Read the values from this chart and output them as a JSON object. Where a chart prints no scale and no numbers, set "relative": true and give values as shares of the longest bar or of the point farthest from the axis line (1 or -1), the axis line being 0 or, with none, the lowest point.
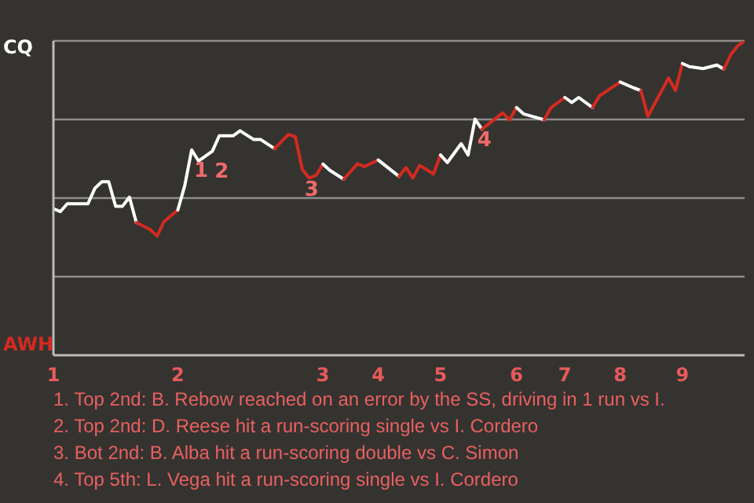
{
  "chart_data": {
    "type": "line",
    "relative": true,
    "categories": [
      "1",
      null,
      null,
      null,
      null,
      null,
      null,
      null,
      null,
      null,
      null,
      null,
      null,
      null,
      null,
      null,
      null,
      null,
      "2",
      null,
      null,
      null,
      null,
      null,
      null,
      null,
      null,
      null,
      null,
      null,
      null,
      null,
      null,
      null,
      null,
      null,
      null,
      null,
      null,
      "3",
      null,
      null,
      null,
      null,
      null,
      null,
      null,
      "4",
      null,
      null,
      null,
      null,
      null,
      null,
      null,
      null,
      "5",
      null,
      null,
      null,
      null,
      null,
      null,
      null,
      null,
      null,
      null,
      "6",
      null,
      null,
      null,
      null,
      null,
      null,
      "7",
      null,
      null,
      null,
      null,
      null,
      null,
      null,
      "8",
      null,
      null,
      null,
      null,
      null,
      null,
      null,
      null,
      "9",
      null,
      null,
      null,
      null,
      null,
      null,
      null,
      null,
      null
    ],
    "series": [
      {
        "color": "#ffffff",
        "values": [
          0.466,
          0.457,
          0.482,
          null,
          null,
          0.482,
          0.531,
          0.552,
          0.552,
          0.474,
          0.474,
          0.503,
          0.422,
          null,
          null,
          null,
          null,
          null,
          null,
          null,
          null,
          null,
          null,
          null,
          null,
          null,
          null,
          null,
          null,
          null,
          null,
          null,
          null,
          null,
          null,
          null,
          null,
          null,
          null,
          null,
          null,
          null,
          null,
          null,
          null,
          null,
          null,
          null,
          null,
          null,
          null,
          null,
          null,
          null,
          null,
          null,
          null,
          null,
          null,
          null,
          null,
          null,
          null,
          null,
          null,
          null,
          null,
          null,
          null,
          null,
          null,
          null,
          null,
          null,
          null,
          null,
          null,
          null,
          null,
          null,
          null,
          null,
          null,
          null,
          null,
          null,
          null,
          null,
          null,
          null,
          null,
          null,
          null,
          null,
          null,
          null,
          null,
          null,
          null,
          null,
          null
        ]
      },
      {
        "color": "#d42a20",
        "values": [
          null,
          null,
          null,
          null,
          null,
          null,
          null,
          null,
          null,
          null,
          null,
          null,
          0.422,
          null,
          0.4,
          0.379,
          0.425,
          null,
          0.462,
          null,
          null,
          null,
          null,
          null,
          null,
          null,
          null,
          null,
          null,
          null,
          null,
          null,
          null,
          null,
          null,
          null,
          null,
          null,
          null,
          null,
          null,
          null,
          null,
          null,
          null,
          null,
          null,
          null,
          null,
          null,
          null,
          null,
          null,
          null,
          null,
          null,
          null,
          null,
          null,
          null,
          null,
          null,
          null,
          null,
          null,
          null,
          null,
          null,
          null,
          null,
          null,
          null,
          null,
          null,
          null,
          null,
          null,
          null,
          null,
          null,
          null,
          null,
          null,
          null,
          null,
          null,
          null,
          null,
          null,
          null,
          null,
          null,
          null,
          null,
          null,
          null,
          null,
          null,
          null,
          null,
          null
        ]
      },
      {
        "color": "#ffffff",
        "values": [
          null,
          null,
          null,
          null,
          null,
          null,
          null,
          null,
          null,
          null,
          null,
          null,
          null,
          null,
          null,
          null,
          null,
          null,
          0.462,
          0.539,
          0.653,
          0.618,
          null,
          0.649,
          0.698,
          null,
          0.698,
          0.714,
          null,
          0.686,
          0.686,
          null,
          0.657,
          null,
          null,
          null,
          null,
          null,
          null,
          null,
          null,
          null,
          null,
          null,
          null,
          null,
          null,
          null,
          null,
          null,
          null,
          null,
          null,
          null,
          null,
          null,
          null,
          null,
          null,
          null,
          null,
          null,
          null,
          null,
          null,
          null,
          null,
          null,
          null,
          null,
          null,
          null,
          null,
          null,
          null,
          null,
          null,
          null,
          null,
          null,
          null,
          null,
          null,
          null,
          null,
          null,
          null,
          null,
          null,
          null,
          null,
          null,
          null,
          null,
          null,
          null,
          null,
          null,
          null,
          null,
          null
        ]
      },
      {
        "color": "#d42a20",
        "values": [
          null,
          null,
          null,
          null,
          null,
          null,
          null,
          null,
          null,
          null,
          null,
          null,
          null,
          null,
          null,
          null,
          null,
          null,
          null,
          null,
          null,
          null,
          null,
          null,
          null,
          null,
          null,
          null,
          null,
          null,
          null,
          null,
          0.657,
          null,
          0.702,
          0.695,
          0.592,
          0.564,
          0.572,
          0.608,
          null,
          null,
          null,
          null,
          null,
          null,
          null,
          null,
          null,
          null,
          null,
          null,
          null,
          null,
          null,
          null,
          null,
          null,
          null,
          null,
          null,
          null,
          null,
          null,
          null,
          null,
          null,
          null,
          null,
          null,
          null,
          null,
          null,
          null,
          null,
          null,
          null,
          null,
          null,
          null,
          null,
          null,
          null,
          null,
          null,
          null,
          null,
          null,
          null,
          null,
          null,
          null,
          null,
          null,
          null,
          null,
          null,
          null,
          null,
          null,
          null
        ]
      },
      {
        "color": "#ffffff",
        "values": [
          null,
          null,
          null,
          null,
          null,
          null,
          null,
          null,
          null,
          null,
          null,
          null,
          null,
          null,
          null,
          null,
          null,
          null,
          null,
          null,
          null,
          null,
          null,
          null,
          null,
          null,
          null,
          null,
          null,
          null,
          null,
          null,
          null,
          null,
          null,
          null,
          null,
          null,
          null,
          0.608,
          0.588,
          null,
          0.56,
          null,
          null,
          null,
          null,
          null,
          null,
          null,
          null,
          null,
          null,
          null,
          null,
          null,
          null,
          null,
          null,
          null,
          null,
          null,
          null,
          null,
          null,
          null,
          null,
          null,
          null,
          null,
          null,
          null,
          null,
          null,
          null,
          null,
          null,
          null,
          null,
          null,
          null,
          null,
          null,
          null,
          null,
          null,
          null,
          null,
          null,
          null,
          null,
          null,
          null,
          null,
          null,
          null,
          null,
          null,
          null,
          null,
          null
        ]
      },
      {
        "color": "#d42a20",
        "values": [
          null,
          null,
          null,
          null,
          null,
          null,
          null,
          null,
          null,
          null,
          null,
          null,
          null,
          null,
          null,
          null,
          null,
          null,
          null,
          null,
          null,
          null,
          null,
          null,
          null,
          null,
          null,
          null,
          null,
          null,
          null,
          null,
          null,
          null,
          null,
          null,
          null,
          null,
          null,
          null,
          null,
          null,
          0.56,
          null,
          0.609,
          0.6,
          null,
          0.621,
          null,
          null,
          null,
          null,
          null,
          null,
          null,
          null,
          null,
          null,
          null,
          null,
          null,
          null,
          null,
          null,
          null,
          null,
          null,
          null,
          null,
          null,
          null,
          null,
          null,
          null,
          null,
          null,
          null,
          null,
          null,
          null,
          null,
          null,
          null,
          null,
          null,
          null,
          null,
          null,
          null,
          null,
          null,
          null,
          null,
          null,
          null,
          null,
          null,
          null,
          null,
          null,
          null
        ]
      },
      {
        "color": "#ffffff",
        "values": [
          null,
          null,
          null,
          null,
          null,
          null,
          null,
          null,
          null,
          null,
          null,
          null,
          null,
          null,
          null,
          null,
          null,
          null,
          null,
          null,
          null,
          null,
          null,
          null,
          null,
          null,
          null,
          null,
          null,
          null,
          null,
          null,
          null,
          null,
          null,
          null,
          null,
          null,
          null,
          null,
          null,
          null,
          null,
          null,
          null,
          null,
          null,
          0.621,
          null,
          null,
          0.569,
          null,
          null,
          null,
          null,
          null,
          null,
          null,
          null,
          null,
          null,
          null,
          null,
          null,
          null,
          null,
          null,
          null,
          null,
          null,
          null,
          null,
          null,
          null,
          null,
          null,
          null,
          null,
          null,
          null,
          null,
          null,
          null,
          null,
          null,
          null,
          null,
          null,
          null,
          null,
          null,
          null,
          null,
          null,
          null,
          null,
          null,
          null,
          null,
          null,
          null
        ]
      },
      {
        "color": "#d42a20",
        "values": [
          null,
          null,
          null,
          null,
          null,
          null,
          null,
          null,
          null,
          null,
          null,
          null,
          null,
          null,
          null,
          null,
          null,
          null,
          null,
          null,
          null,
          null,
          null,
          null,
          null,
          null,
          null,
          null,
          null,
          null,
          null,
          null,
          null,
          null,
          null,
          null,
          null,
          null,
          null,
          null,
          null,
          null,
          null,
          null,
          null,
          null,
          null,
          null,
          null,
          null,
          0.569,
          0.597,
          0.564,
          0.604,
          null,
          0.577,
          0.637,
          null,
          null,
          null,
          null,
          null,
          null,
          null,
          null,
          null,
          null,
          null,
          null,
          null,
          null,
          null,
          null,
          null,
          null,
          null,
          null,
          null,
          null,
          null,
          null,
          null,
          null,
          null,
          null,
          null,
          null,
          null,
          null,
          null,
          null,
          null,
          null,
          null,
          null,
          null,
          null,
          null,
          null,
          null,
          null
        ]
      },
      {
        "color": "#ffffff",
        "values": [
          null,
          null,
          null,
          null,
          null,
          null,
          null,
          null,
          null,
          null,
          null,
          null,
          null,
          null,
          null,
          null,
          null,
          null,
          null,
          null,
          null,
          null,
          null,
          null,
          null,
          null,
          null,
          null,
          null,
          null,
          null,
          null,
          null,
          null,
          null,
          null,
          null,
          null,
          null,
          null,
          null,
          null,
          null,
          null,
          null,
          null,
          null,
          null,
          null,
          null,
          null,
          null,
          null,
          null,
          null,
          null,
          0.637,
          0.613,
          null,
          0.673,
          0.637,
          0.751,
          0.719,
          null,
          null,
          null,
          null,
          null,
          null,
          null,
          null,
          null,
          null,
          null,
          null,
          null,
          null,
          null,
          null,
          null,
          null,
          null,
          null,
          null,
          null,
          null,
          null,
          null,
          null,
          null,
          null,
          null,
          null,
          null,
          null,
          null,
          null,
          null,
          null,
          null,
          null
        ]
      },
      {
        "color": "#d42a20",
        "values": [
          null,
          null,
          null,
          null,
          null,
          null,
          null,
          null,
          null,
          null,
          null,
          null,
          null,
          null,
          null,
          null,
          null,
          null,
          null,
          null,
          null,
          null,
          null,
          null,
          null,
          null,
          null,
          null,
          null,
          null,
          null,
          null,
          null,
          null,
          null,
          null,
          null,
          null,
          null,
          null,
          null,
          null,
          null,
          null,
          null,
          null,
          null,
          null,
          null,
          null,
          null,
          null,
          null,
          null,
          null,
          null,
          null,
          null,
          null,
          null,
          null,
          null,
          0.719,
          null,
          null,
          0.771,
          0.749,
          0.788,
          null,
          null,
          null,
          null,
          null,
          null,
          null,
          null,
          null,
          null,
          null,
          null,
          null,
          null,
          null,
          null,
          null,
          null,
          null,
          null,
          null,
          null,
          null,
          null,
          null,
          null,
          null,
          null,
          null,
          null,
          null,
          null,
          null
        ]
      },
      {
        "color": "#ffffff",
        "values": [
          null,
          null,
          null,
          null,
          null,
          null,
          null,
          null,
          null,
          null,
          null,
          null,
          null,
          null,
          null,
          null,
          null,
          null,
          null,
          null,
          null,
          null,
          null,
          null,
          null,
          null,
          null,
          null,
          null,
          null,
          null,
          null,
          null,
          null,
          null,
          null,
          null,
          null,
          null,
          null,
          null,
          null,
          null,
          null,
          null,
          null,
          null,
          null,
          null,
          null,
          null,
          null,
          null,
          null,
          null,
          null,
          null,
          null,
          null,
          null,
          null,
          null,
          null,
          null,
          null,
          null,
          null,
          0.788,
          0.768,
          null,
          null,
          0.749,
          null,
          null,
          null,
          null,
          null,
          null,
          null,
          null,
          null,
          null,
          null,
          null,
          null,
          null,
          null,
          null,
          null,
          null,
          null,
          null,
          null,
          null,
          null,
          null,
          null,
          null,
          null,
          null,
          null
        ]
      },
      {
        "color": "#d42a20",
        "values": [
          null,
          null,
          null,
          null,
          null,
          null,
          null,
          null,
          null,
          null,
          null,
          null,
          null,
          null,
          null,
          null,
          null,
          null,
          null,
          null,
          null,
          null,
          null,
          null,
          null,
          null,
          null,
          null,
          null,
          null,
          null,
          null,
          null,
          null,
          null,
          null,
          null,
          null,
          null,
          null,
          null,
          null,
          null,
          null,
          null,
          null,
          null,
          null,
          null,
          null,
          null,
          null,
          null,
          null,
          null,
          null,
          null,
          null,
          null,
          null,
          null,
          null,
          null,
          null,
          null,
          null,
          null,
          null,
          null,
          null,
          null,
          0.749,
          0.788,
          null,
          0.82,
          null,
          null,
          null,
          null,
          null,
          null,
          null,
          null,
          null,
          null,
          null,
          null,
          null,
          null,
          null,
          null,
          null,
          null,
          null,
          null,
          null,
          null,
          null,
          null,
          null,
          null
        ]
      },
      {
        "color": "#ffffff",
        "values": [
          null,
          null,
          null,
          null,
          null,
          null,
          null,
          null,
          null,
          null,
          null,
          null,
          null,
          null,
          null,
          null,
          null,
          null,
          null,
          null,
          null,
          null,
          null,
          null,
          null,
          null,
          null,
          null,
          null,
          null,
          null,
          null,
          null,
          null,
          null,
          null,
          null,
          null,
          null,
          null,
          null,
          null,
          null,
          null,
          null,
          null,
          null,
          null,
          null,
          null,
          null,
          null,
          null,
          null,
          null,
          null,
          null,
          null,
          null,
          null,
          null,
          null,
          null,
          null,
          null,
          null,
          null,
          null,
          null,
          null,
          null,
          null,
          null,
          null,
          0.82,
          0.804,
          0.82,
          null,
          0.788,
          null,
          null,
          null,
          null,
          null,
          null,
          null,
          null,
          null,
          null,
          null,
          null,
          null,
          null,
          null,
          null,
          null,
          null,
          null,
          null,
          null,
          null
        ]
      },
      {
        "color": "#d42a20",
        "values": [
          null,
          null,
          null,
          null,
          null,
          null,
          null,
          null,
          null,
          null,
          null,
          null,
          null,
          null,
          null,
          null,
          null,
          null,
          null,
          null,
          null,
          null,
          null,
          null,
          null,
          null,
          null,
          null,
          null,
          null,
          null,
          null,
          null,
          null,
          null,
          null,
          null,
          null,
          null,
          null,
          null,
          null,
          null,
          null,
          null,
          null,
          null,
          null,
          null,
          null,
          null,
          null,
          null,
          null,
          null,
          null,
          null,
          null,
          null,
          null,
          null,
          null,
          null,
          null,
          null,
          null,
          null,
          null,
          null,
          null,
          null,
          null,
          null,
          null,
          null,
          null,
          null,
          null,
          0.788,
          0.825,
          null,
          null,
          0.869,
          null,
          null,
          null,
          null,
          null,
          null,
          null,
          null,
          null,
          null,
          null,
          null,
          null,
          null,
          null,
          null,
          null,
          null
        ]
      },
      {
        "color": "#ffffff",
        "values": [
          null,
          null,
          null,
          null,
          null,
          null,
          null,
          null,
          null,
          null,
          null,
          null,
          null,
          null,
          null,
          null,
          null,
          null,
          null,
          null,
          null,
          null,
          null,
          null,
          null,
          null,
          null,
          null,
          null,
          null,
          null,
          null,
          null,
          null,
          null,
          null,
          null,
          null,
          null,
          null,
          null,
          null,
          null,
          null,
          null,
          null,
          null,
          null,
          null,
          null,
          null,
          null,
          null,
          null,
          null,
          null,
          null,
          null,
          null,
          null,
          null,
          null,
          null,
          null,
          null,
          null,
          null,
          null,
          null,
          null,
          null,
          null,
          null,
          null,
          null,
          null,
          null,
          null,
          null,
          null,
          null,
          null,
          0.869,
          null,
          0.85,
          0.842,
          null,
          null,
          null,
          null,
          null,
          null,
          null,
          null,
          null,
          null,
          null,
          null,
          null,
          null,
          null
        ]
      },
      {
        "color": "#d42a20",
        "values": [
          null,
          null,
          null,
          null,
          null,
          null,
          null,
          null,
          null,
          null,
          null,
          null,
          null,
          null,
          null,
          null,
          null,
          null,
          null,
          null,
          null,
          null,
          null,
          null,
          null,
          null,
          null,
          null,
          null,
          null,
          null,
          null,
          null,
          null,
          null,
          null,
          null,
          null,
          null,
          null,
          null,
          null,
          null,
          null,
          null,
          null,
          null,
          null,
          null,
          null,
          null,
          null,
          null,
          null,
          null,
          null,
          null,
          null,
          null,
          null,
          null,
          null,
          null,
          null,
          null,
          null,
          null,
          null,
          null,
          null,
          null,
          null,
          null,
          null,
          null,
          null,
          null,
          null,
          null,
          null,
          null,
          null,
          null,
          null,
          null,
          0.842,
          0.76,
          null,
          null,
          0.882,
          0.842,
          0.928,
          null,
          null,
          null,
          null,
          null,
          null,
          null,
          null,
          null
        ]
      },
      {
        "color": "#ffffff",
        "values": [
          null,
          null,
          null,
          null,
          null,
          null,
          null,
          null,
          null,
          null,
          null,
          null,
          null,
          null,
          null,
          null,
          null,
          null,
          null,
          null,
          null,
          null,
          null,
          null,
          null,
          null,
          null,
          null,
          null,
          null,
          null,
          null,
          null,
          null,
          null,
          null,
          null,
          null,
          null,
          null,
          null,
          null,
          null,
          null,
          null,
          null,
          null,
          null,
          null,
          null,
          null,
          null,
          null,
          null,
          null,
          null,
          null,
          null,
          null,
          null,
          null,
          null,
          null,
          null,
          null,
          null,
          null,
          null,
          null,
          null,
          null,
          null,
          null,
          null,
          null,
          null,
          null,
          null,
          null,
          null,
          null,
          null,
          null,
          null,
          null,
          null,
          null,
          null,
          null,
          null,
          null,
          0.928,
          0.918,
          null,
          0.912,
          null,
          0.923,
          0.91,
          null,
          null,
          null
        ]
      },
      {
        "color": "#d42a20",
        "values": [
          null,
          null,
          null,
          null,
          null,
          null,
          null,
          null,
          null,
          null,
          null,
          null,
          null,
          null,
          null,
          null,
          null,
          null,
          null,
          null,
          null,
          null,
          null,
          null,
          null,
          null,
          null,
          null,
          null,
          null,
          null,
          null,
          null,
          null,
          null,
          null,
          null,
          null,
          null,
          null,
          null,
          null,
          null,
          null,
          null,
          null,
          null,
          null,
          null,
          null,
          null,
          null,
          null,
          null,
          null,
          null,
          null,
          null,
          null,
          null,
          null,
          null,
          null,
          null,
          null,
          null,
          null,
          null,
          null,
          null,
          null,
          null,
          null,
          null,
          null,
          null,
          null,
          null,
          null,
          null,
          null,
          null,
          null,
          null,
          null,
          null,
          null,
          null,
          null,
          null,
          null,
          null,
          null,
          null,
          null,
          null,
          null,
          0.91,
          0.956,
          0.984,
          1
        ]
      }
    ],
    "grid": "y",
    "annotations": [
      {
        "text": "1",
        "y": 0.653
      },
      {
        "text": "2",
        "y": 0.649
      },
      {
        "text": "3",
        "y": 0.592
      },
      {
        "text": "4",
        "y": 0.751
      },
      "CQ",
      "AWH",
      "1. Top 2nd: B. Rebow reached on an error by the SS, driving in 1 run vs I.",
      "2. Top 2nd: D. Reese hit a run-scoring single vs I. Cordero",
      "3. Bot 2nd: B. Alba hit a run-scoring double vs C. Simon",
      "4. Top 5th: L. Vega hit a run-scoring single vs I. Cordero"
    ]
  }
}
